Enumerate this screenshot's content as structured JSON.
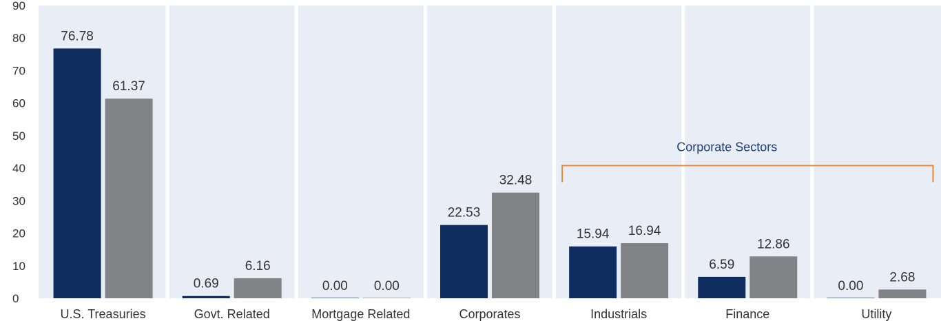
{
  "colors": {
    "panel": "#e9edf6",
    "divider": "#ffffff",
    "series1": "#0f2d5e",
    "series2": "#828387",
    "bracket": "#e8893a",
    "annotation_text": "#1f3e78",
    "text": "#333333"
  },
  "chart_data": {
    "type": "bar",
    "categories": [
      "U.S. Treasuries",
      "Govt. Related",
      "Mortgage Related",
      "Corporates",
      "Industrials",
      "Finance",
      "Utility"
    ],
    "series": [
      {
        "values": [
          76.78,
          0.69,
          0.0,
          22.53,
          15.94,
          6.59,
          0.0
        ],
        "labels": [
          "76.78",
          "0.69",
          "0.00",
          "22.53",
          "15.94",
          "6.59",
          "0.00"
        ]
      },
      {
        "values": [
          61.37,
          6.16,
          0.0,
          32.48,
          16.94,
          12.86,
          2.68
        ],
        "labels": [
          "61.37",
          "6.16",
          "0.00",
          "32.48",
          "16.94",
          "12.86",
          "2.68"
        ]
      }
    ],
    "ylim": [
      0,
      90
    ],
    "yticks": [
      "0",
      "10",
      "20",
      "30",
      "40",
      "50",
      "60",
      "70",
      "80",
      "90"
    ],
    "annotation": {
      "text": "Corporate Sectors",
      "spans_categories": [
        "Industrials",
        "Finance",
        "Utility"
      ],
      "y_value": 40.8
    }
  }
}
